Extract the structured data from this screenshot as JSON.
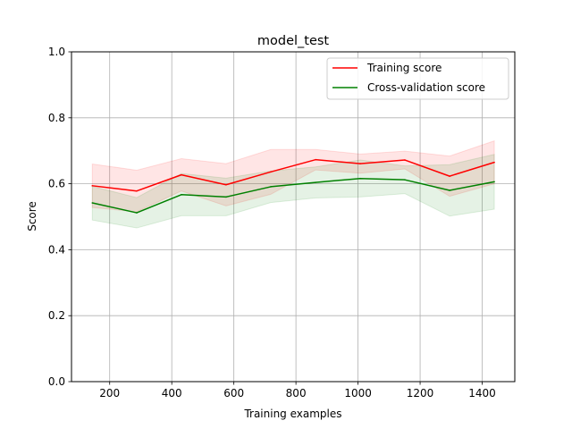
{
  "chart_data": {
    "type": "line",
    "title": "model_test",
    "xlabel": "Training examples",
    "ylabel": "Score",
    "xlim": [
      77,
      1505
    ],
    "ylim": [
      0.0,
      1.0
    ],
    "xticks": [
      200,
      400,
      600,
      800,
      1000,
      1200,
      1400
    ],
    "yticks": [
      0.0,
      0.2,
      0.4,
      0.6,
      0.8,
      1.0
    ],
    "ytick_labels": [
      "0.0",
      "0.2",
      "0.4",
      "0.6",
      "0.8",
      "1.0"
    ],
    "grid": true,
    "legend_position": "top-right",
    "x": [
      144,
      287,
      431,
      575,
      719,
      863,
      1007,
      1151,
      1295,
      1439
    ],
    "series": [
      {
        "name": "Training score",
        "color": "#ff0000",
        "values": [
          0.594,
          0.578,
          0.627,
          0.597,
          0.636,
          0.673,
          0.661,
          0.672,
          0.623,
          0.665
        ],
        "band_lower": [
          0.528,
          0.515,
          0.578,
          0.533,
          0.568,
          0.642,
          0.632,
          0.645,
          0.562,
          0.6
        ],
        "band_upper": [
          0.66,
          0.641,
          0.676,
          0.661,
          0.704,
          0.704,
          0.69,
          0.699,
          0.684,
          0.73
        ],
        "band_color": "#ff0000"
      },
      {
        "name": "Cross-validation score",
        "color": "#008000",
        "values": [
          0.542,
          0.512,
          0.567,
          0.56,
          0.591,
          0.604,
          0.616,
          0.612,
          0.58,
          0.606
        ],
        "band_lower": [
          0.49,
          0.466,
          0.503,
          0.503,
          0.543,
          0.557,
          0.56,
          0.57,
          0.502,
          0.523
        ],
        "band_upper": [
          0.592,
          0.558,
          0.631,
          0.617,
          0.639,
          0.651,
          0.672,
          0.654,
          0.658,
          0.689
        ],
        "band_color": "#008000"
      }
    ]
  }
}
